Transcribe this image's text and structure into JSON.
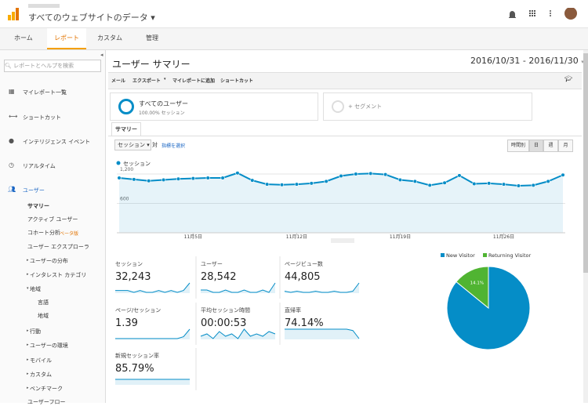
{
  "header": {
    "property": "すべてのウェブサイトのデータ"
  },
  "tabs": [
    "ホーム",
    "レポート",
    "カスタム",
    "管理"
  ],
  "sidebar": {
    "search": "レポートとヘルプを検索",
    "top": [
      "マイレポート一覧",
      "ショートカット",
      "インテリジェンス イベント",
      "リアルタイム"
    ],
    "section": "ユーザー",
    "items": [
      "サマリー",
      "アクティブ ユーザー",
      "コホート分析",
      "ユーザー エクスプローラ",
      "ユーザーの分布",
      "インタレスト カテゴリ",
      "地域",
      "言語",
      "地域",
      "行動",
      "ユーザーの環境",
      "モバイル",
      "カスタム",
      "ベンチマーク",
      "ユーザーフロー"
    ],
    "beta": "ベータ版"
  },
  "report": {
    "title": "ユーザー サマリー",
    "date_range": "2016/10/31 - 2016/11/30",
    "toolbar": [
      "メール",
      "エクスポート",
      "マイレポートに追加",
      "ショートカット"
    ],
    "segment": {
      "name": "すべてのユーザー",
      "share": "100.00% セッション",
      "add": "+ セグメント"
    },
    "tab": "サマリー",
    "metric_select": "セッション",
    "versus": "対",
    "choose_metric": "指標を選択",
    "granularity": [
      "時間別",
      "日",
      "週",
      "月"
    ]
  },
  "chart_data": [
    {
      "type": "line",
      "series": [
        {
          "name": "セッション",
          "color": "#058dc7",
          "values": [
            1120,
            1090,
            1060,
            1080,
            1100,
            1110,
            1120,
            1120,
            1220,
            1070,
            990,
            980,
            990,
            1010,
            1050,
            1160,
            1200,
            1210,
            1190,
            1080,
            1050,
            970,
            1020,
            1170,
            1000,
            1010,
            990,
            960,
            970,
            1050,
            1180
          ]
        }
      ],
      "x": [
        "2016-10-31",
        "2016-11-01",
        "2016-11-02",
        "2016-11-03",
        "2016-11-04",
        "2016-11-05",
        "2016-11-06",
        "2016-11-07",
        "2016-11-08",
        "2016-11-09",
        "2016-11-10",
        "2016-11-11",
        "2016-11-12",
        "2016-11-13",
        "2016-11-14",
        "2016-11-15",
        "2016-11-16",
        "2016-11-17",
        "2016-11-18",
        "2016-11-19",
        "2016-11-20",
        "2016-11-21",
        "2016-11-22",
        "2016-11-23",
        "2016-11-24",
        "2016-11-25",
        "2016-11-26",
        "2016-11-27",
        "2016-11-28",
        "2016-11-29",
        "2016-11-30"
      ],
      "xticks": [
        {
          "value": 5,
          "label": "11月5日"
        },
        {
          "value": 12,
          "label": "11月12日"
        },
        {
          "value": 19,
          "label": "11月19日"
        },
        {
          "value": 26,
          "label": "11月26日"
        }
      ],
      "ylim": [
        0,
        1300
      ],
      "yticks": [
        600,
        {
          "value": 1200,
          "label": "1,200"
        }
      ],
      "grid": true
    },
    {
      "type": "pie",
      "categories": [
        "New Visitor",
        "Returning Visitor"
      ],
      "values": [
        85.9,
        14.1
      ],
      "value_labels": [
        "85.9%",
        "14.1%"
      ],
      "colors": [
        "#058dc7",
        "#50b432"
      ]
    }
  ],
  "metrics": [
    {
      "label": "セッション",
      "value": "32,243",
      "sparkline": [
        5,
        5,
        5,
        4,
        5,
        4,
        4,
        5,
        4,
        5,
        4,
        5,
        9
      ]
    },
    {
      "label": "ユーザー",
      "value": "28,542",
      "sparkline": [
        5,
        5,
        4,
        4,
        5,
        4,
        4,
        5,
        4,
        4,
        5,
        4,
        8
      ]
    },
    {
      "label": "ページビュー数",
      "value": "44,805",
      "sparkline": [
        5,
        4,
        5,
        4,
        4,
        5,
        4,
        4,
        5,
        4,
        4,
        5,
        12
      ]
    },
    {
      "label": "ページ/セッション",
      "value": "1.39",
      "sparkline": [
        4,
        4,
        4,
        4,
        4,
        4,
        4,
        4,
        4,
        4,
        4,
        5,
        9
      ]
    },
    {
      "label": "平均セッション時間",
      "value": "00:00:53",
      "sparkline": [
        6,
        7,
        5,
        8,
        6,
        7,
        5,
        9,
        6,
        7,
        6,
        8,
        7
      ]
    },
    {
      "label": "直帰率",
      "value": "74.14%",
      "sparkline": [
        9,
        9,
        9,
        9,
        9,
        9,
        9,
        9,
        9,
        9,
        9,
        8,
        2
      ]
    },
    {
      "label": "新規セッション率",
      "value": "85.79%",
      "sparkline": [
        8,
        8,
        8,
        8,
        8,
        8,
        8,
        8,
        8,
        8,
        8,
        8,
        8
      ]
    }
  ]
}
